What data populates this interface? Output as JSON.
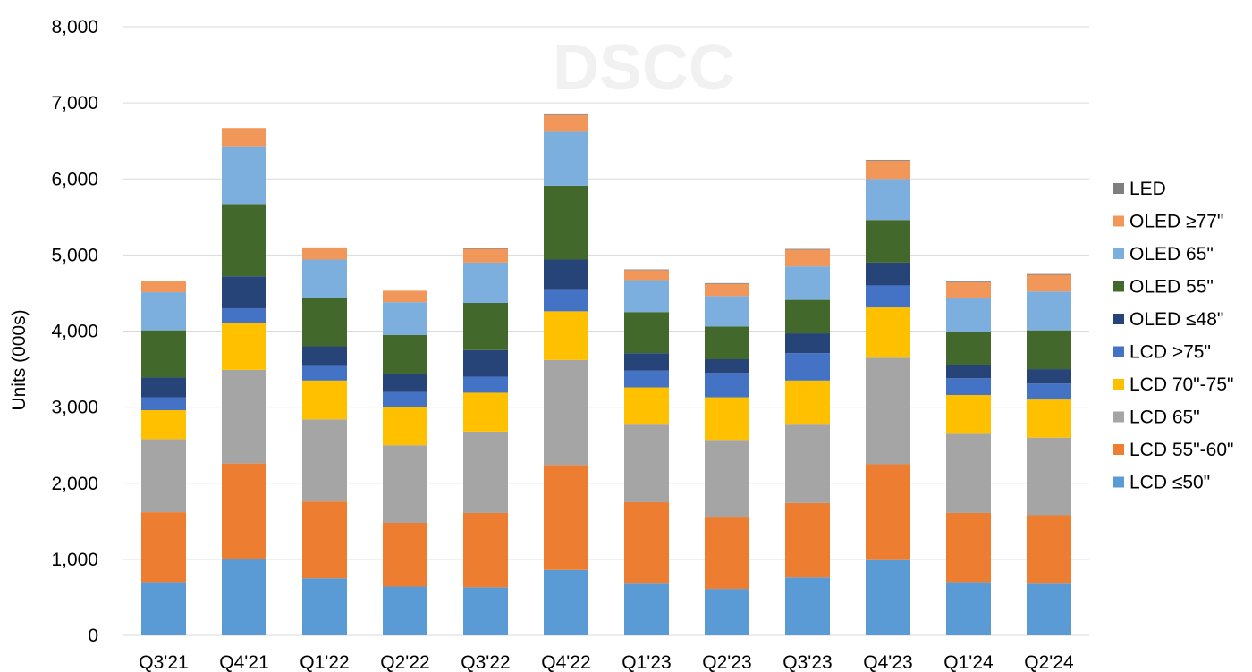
{
  "watermark": "DSCC",
  "chart_data": {
    "type": "bar",
    "stacked": true,
    "title": "",
    "xlabel": "",
    "ylabel": "Units (000s)",
    "ylim": [
      0,
      8000
    ],
    "yticks": [
      "0",
      "1,000",
      "2,000",
      "3,000",
      "4,000",
      "5,000",
      "6,000",
      "7,000",
      "8,000"
    ],
    "grid": true,
    "legend_position": "right",
    "categories": [
      "Q3'21",
      "Q4'21",
      "Q1'22",
      "Q2'22",
      "Q3'22",
      "Q4'22",
      "Q1'23",
      "Q2'23",
      "Q3'23",
      "Q4'23",
      "Q1'24",
      "Q2'24"
    ],
    "series": [
      {
        "name": "LCD  ≤50\"",
        "color": "#5b9bd5",
        "values": [
          700,
          1000,
          750,
          640,
          630,
          860,
          690,
          610,
          760,
          990,
          700,
          690
        ]
      },
      {
        "name": "LCD 55\"-60\"",
        "color": "#ed7d31",
        "values": [
          920,
          1260,
          1010,
          840,
          980,
          1380,
          1060,
          940,
          980,
          1260,
          910,
          890
        ]
      },
      {
        "name": "LCD 65\"",
        "color": "#a5a5a5",
        "values": [
          960,
          1230,
          1080,
          1020,
          1070,
          1380,
          1020,
          1020,
          1030,
          1400,
          1040,
          1020
        ]
      },
      {
        "name": "LCD 70\"-75\"",
        "color": "#ffc000",
        "values": [
          380,
          620,
          510,
          500,
          510,
          640,
          490,
          560,
          580,
          660,
          510,
          500
        ]
      },
      {
        "name": "LCD >75\"",
        "color": "#4472c4",
        "values": [
          170,
          190,
          190,
          200,
          210,
          290,
          220,
          320,
          360,
          290,
          220,
          210
        ]
      },
      {
        "name": "OLED  ≤48\"",
        "color": "#264478",
        "values": [
          260,
          420,
          260,
          240,
          350,
          390,
          230,
          180,
          260,
          300,
          170,
          190
        ]
      },
      {
        "name": "OLED 55\"",
        "color": "#43682b",
        "values": [
          620,
          950,
          640,
          510,
          620,
          970,
          540,
          430,
          440,
          560,
          440,
          510
        ]
      },
      {
        "name": "OLED 65\"",
        "color": "#7cafdd",
        "values": [
          500,
          760,
          500,
          430,
          530,
          710,
          420,
          400,
          440,
          540,
          450,
          510
        ]
      },
      {
        "name": "OLED ≥77\"",
        "color": "#f1975a",
        "values": [
          150,
          240,
          160,
          150,
          180,
          220,
          130,
          160,
          220,
          240,
          200,
          220
        ]
      },
      {
        "name": "LED",
        "color": "#7f7f7f",
        "values": [
          0,
          0,
          0,
          0,
          10,
          10,
          10,
          10,
          10,
          10,
          10,
          10
        ]
      }
    ]
  }
}
